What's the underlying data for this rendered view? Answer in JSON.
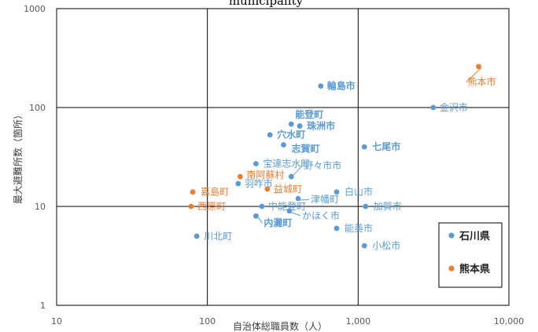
{
  "chart_data": {
    "type": "scatter",
    "title": "municipality",
    "xlabel": "自治体総職員数（人）",
    "ylabel": "最大避難所数（箇所）",
    "xscale": "log",
    "yscale": "log",
    "xlim": [
      10,
      10000
    ],
    "ylim": [
      1,
      1000
    ],
    "x_ticks": [
      10,
      100,
      1000,
      10000
    ],
    "x_tick_labels": [
      "10",
      "100",
      "1,000",
      "10,000"
    ],
    "y_ticks": [
      1,
      10,
      100,
      1000
    ],
    "y_tick_labels": [
      "1",
      "10",
      "100",
      "1000"
    ],
    "grid": true,
    "legend_position": "bottom-right",
    "series": [
      {
        "name": "石川県",
        "color": "#5b9bd5",
        "points": [
          {
            "label": "輪島市",
            "x": 565,
            "y": 165,
            "bold": true
          },
          {
            "label": "金沢市",
            "x": 3150,
            "y": 100,
            "bold": false
          },
          {
            "label": "能登町",
            "x": 360,
            "y": 68,
            "bold": true
          },
          {
            "label": "珠洲市",
            "x": 410,
            "y": 65,
            "bold": true
          },
          {
            "label": "穴水町",
            "x": 260,
            "y": 53,
            "bold": true
          },
          {
            "label": "志賀町",
            "x": 320,
            "y": 42,
            "bold": true
          },
          {
            "label": "七尾市",
            "x": 1100,
            "y": 40,
            "bold": true
          },
          {
            "label": "宝達志水町",
            "x": 210,
            "y": 27,
            "bold": false
          },
          {
            "label": "野々市市",
            "x": 360,
            "y": 20,
            "bold": false
          },
          {
            "label": "羽咋市",
            "x": 160,
            "y": 17,
            "bold": false
          },
          {
            "label": "白山市",
            "x": 720,
            "y": 14,
            "bold": false
          },
          {
            "label": "津幡町",
            "x": 400,
            "y": 12,
            "bold": false
          },
          {
            "label": "中能登町",
            "x": 230,
            "y": 10,
            "bold": false
          },
          {
            "label": "加賀市",
            "x": 1120,
            "y": 10,
            "bold": false
          },
          {
            "label": "かほく市",
            "x": 350,
            "y": 9,
            "bold": false
          },
          {
            "label": "内灘町",
            "x": 210,
            "y": 8,
            "bold": true
          },
          {
            "label": "能美市",
            "x": 720,
            "y": 6,
            "bold": false
          },
          {
            "label": "川北町",
            "x": 85,
            "y": 5,
            "bold": false
          },
          {
            "label": "小松市",
            "x": 1100,
            "y": 4,
            "bold": false
          }
        ]
      },
      {
        "name": "熊本県",
        "color": "#ed7d31",
        "points": [
          {
            "label": "熊本市",
            "x": 6300,
            "y": 260,
            "bold": false
          },
          {
            "label": "南阿蘇村",
            "x": 165,
            "y": 20,
            "bold": false
          },
          {
            "label": "益城町",
            "x": 250,
            "y": 15,
            "bold": false
          },
          {
            "label": "嘉島町",
            "x": 80,
            "y": 14,
            "bold": false
          },
          {
            "label": "西原町",
            "x": 78,
            "y": 10,
            "bold": false
          }
        ]
      }
    ]
  }
}
